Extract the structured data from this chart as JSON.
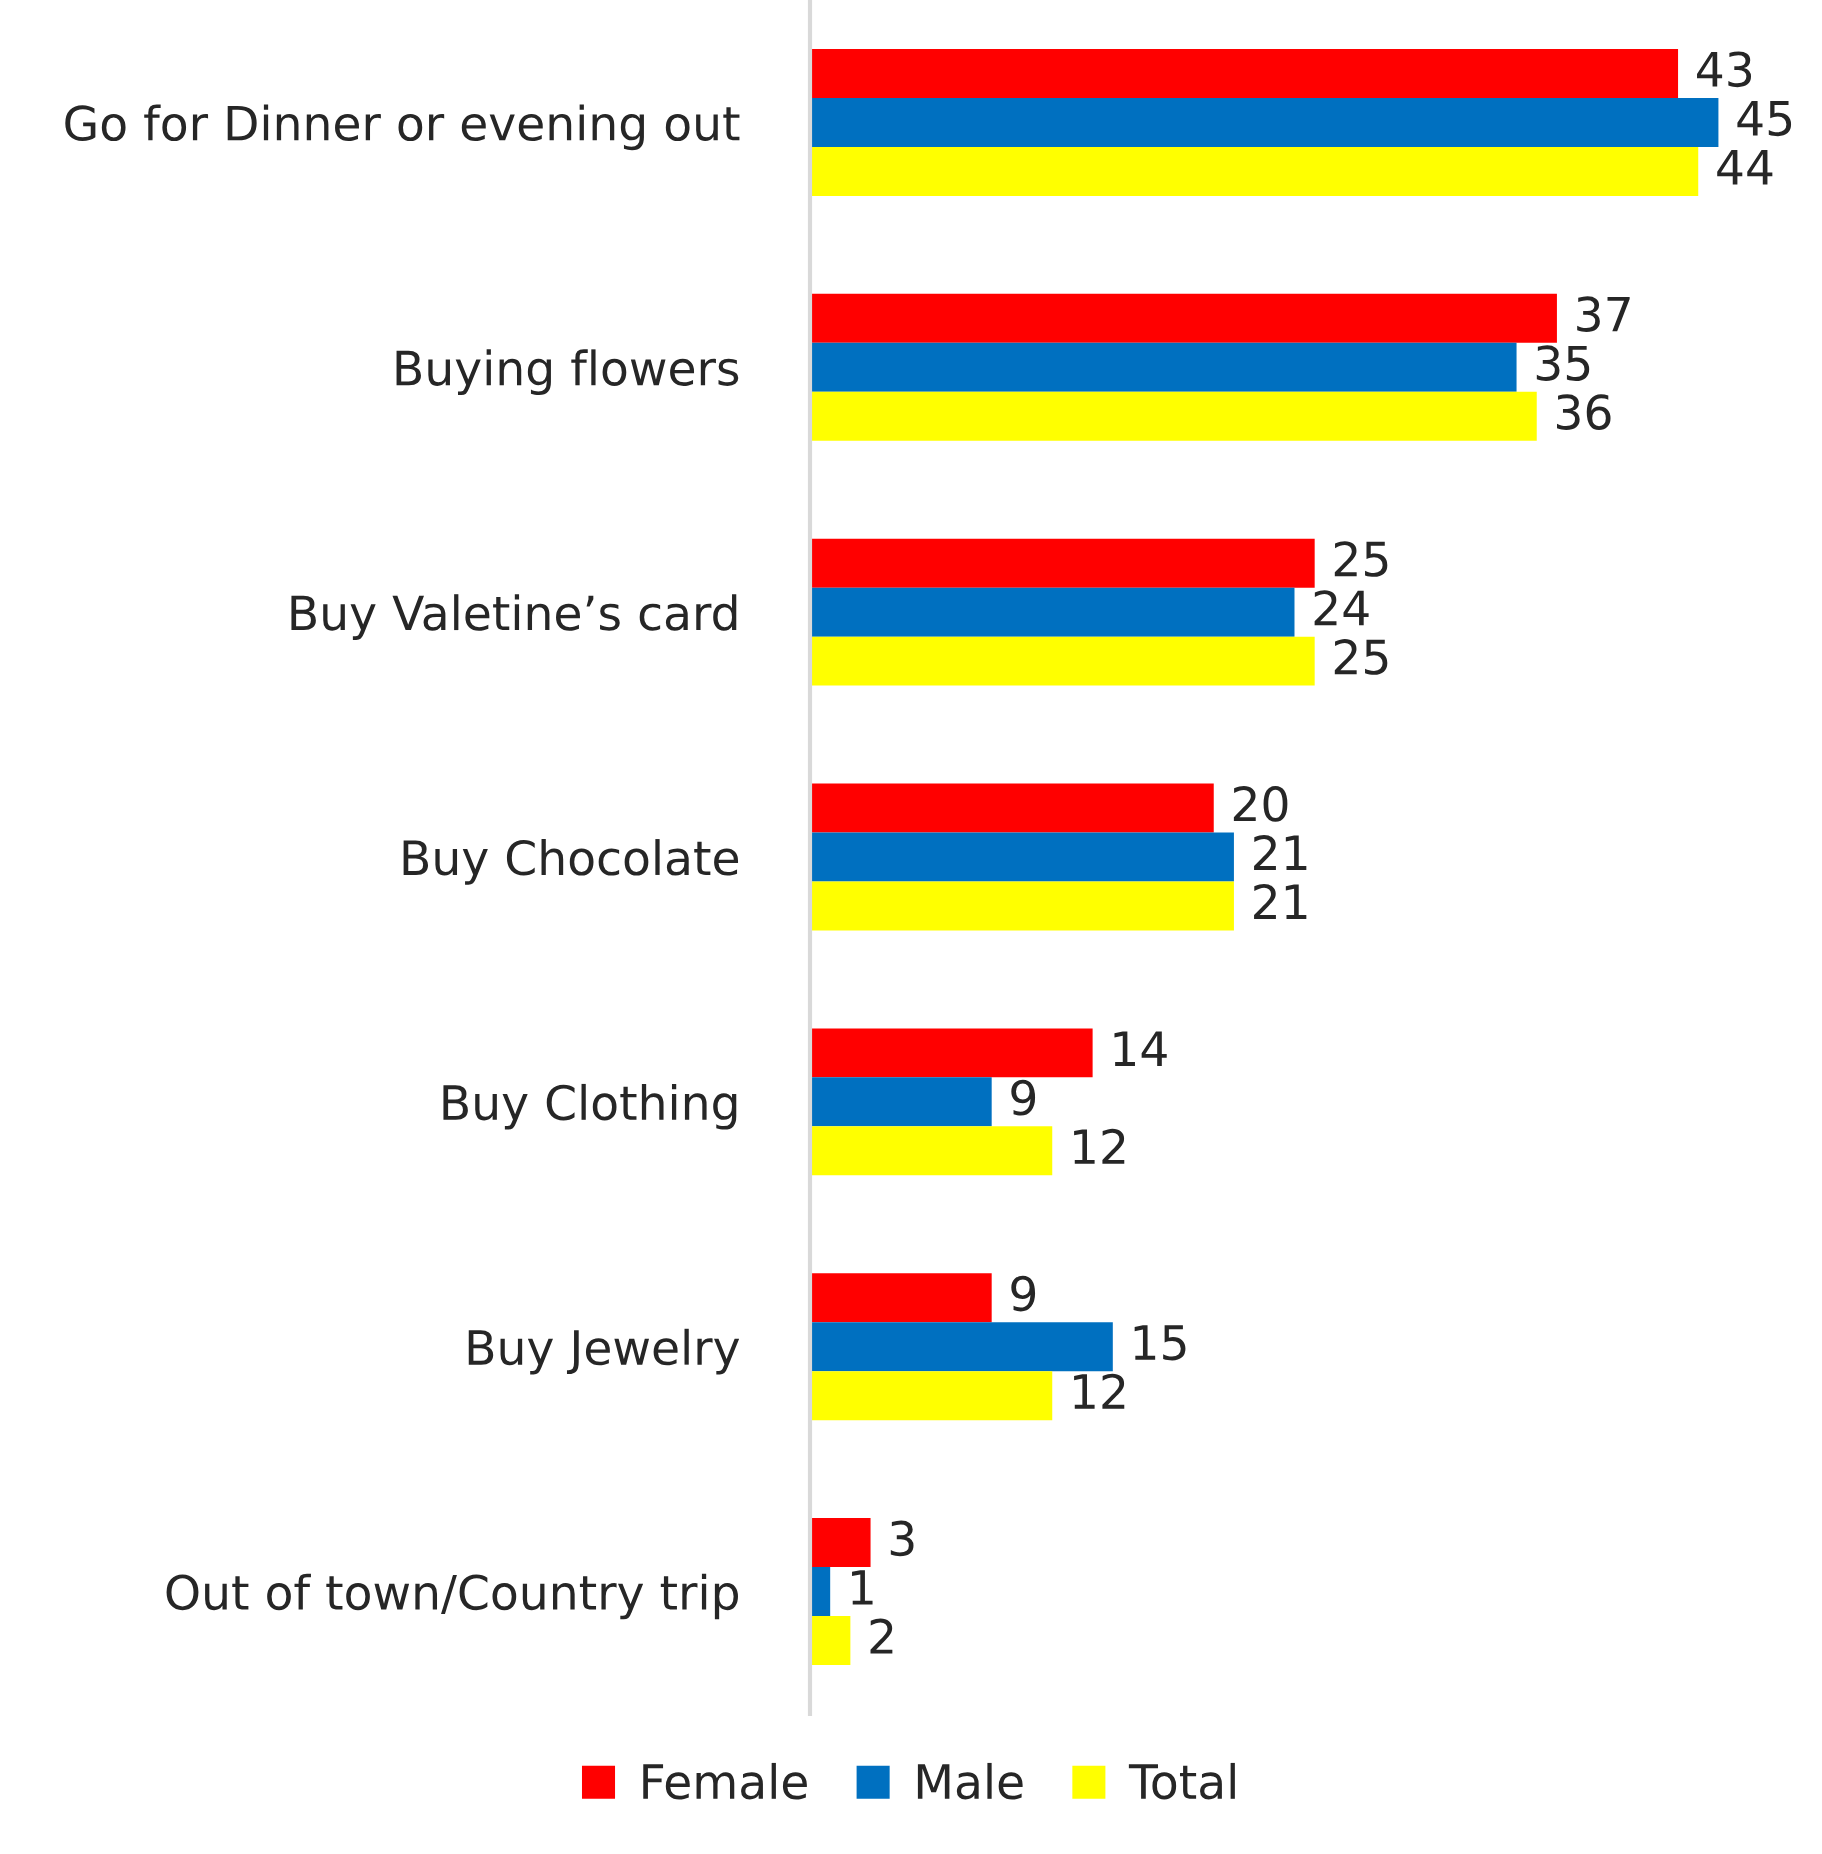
{
  "chart_data": {
    "type": "bar",
    "orientation": "horizontal",
    "categories": [
      "Go for Dinner or evening out",
      "Buying flowers",
      "Buy Valetine’s card",
      "Buy Chocolate",
      "Buy Clothing",
      "Buy Jewelry",
      "Out of town/Country trip"
    ],
    "series": [
      {
        "name": "Female",
        "color": "#ff0000",
        "values": [
          43,
          37,
          25,
          20,
          14,
          9,
          3
        ]
      },
      {
        "name": "Male",
        "color": "#0070c0",
        "values": [
          45,
          35,
          24,
          21,
          9,
          15,
          1
        ]
      },
      {
        "name": "Total",
        "color": "#ffff00",
        "values": [
          44,
          36,
          25,
          21,
          12,
          12,
          2
        ]
      }
    ],
    "data_labels": true,
    "legend": "bottom",
    "grid": false,
    "tick_labels": "y"
  }
}
